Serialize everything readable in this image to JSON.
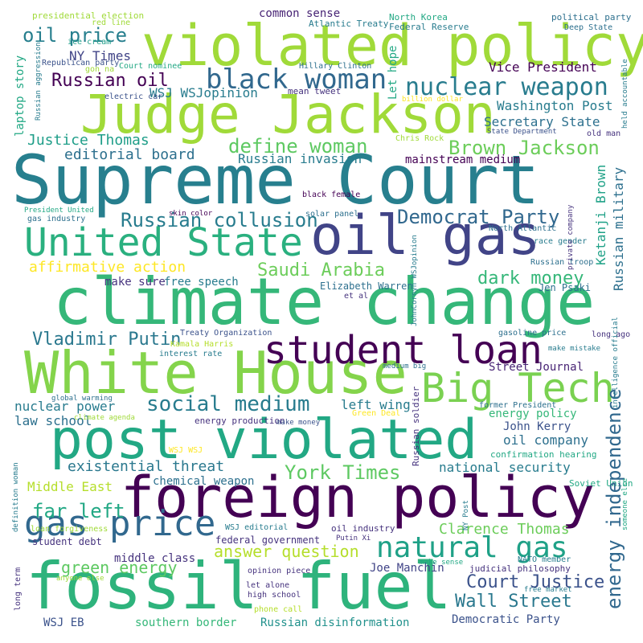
{
  "background": "#ffffff",
  "colors": {
    "dark_purple": "#440154",
    "indigo": "#46337e",
    "blue": "#365c8d",
    "teal": "#277f8e",
    "green_teal": "#1fa187",
    "green": "#4ac16d",
    "lime": "#a0da39",
    "yellow": "#fde725"
  },
  "words": {
    "supreme_court": "Supreme Court",
    "climate_change": "climate change",
    "judge_jackson": "Judge Jackson",
    "violated_policy": "violated policy",
    "white_house": "White House",
    "foreign_policy": "foreign policy",
    "fossil_fuel": "fossil fuel",
    "post_violated": "post violated",
    "oil_gas": "oil gas",
    "united_state": "United State",
    "student_loan": "student loan",
    "big_tech": "Big Tech",
    "gas_price": "gas price",
    "black_woman": "black woman",
    "natural_gas": "natural gas",
    "nuclear_weapon": "nuclear weapon",
    "social_medium": "social medium",
    "energy_independence": "energy independence",
    "define_woman": "define woman",
    "brown_jackson": "Brown Jackson",
    "russian_collusion": "Russian collusion",
    "democrat_party": "Democrat Party",
    "oil_price": "oil price",
    "russian_oil": "Russian oil",
    "vladimir_putin": "Vladimir Putin",
    "york_times": "York Times",
    "wall_street": "Wall Street",
    "court_justice": "Court Justice",
    "dark_money": "dark money",
    "saudi_arabia": "Saudi Arabia",
    "existential_threat": "existential threat",
    "far_left": "far left",
    "affirmative_action": "affirmative action",
    "green_energy": "green energy",
    "answer_question": "answer question",
    "clarence_thomas": "Clarence Thomas",
    "nuclear_power": "nuclear power",
    "editorial_board": "editorial board",
    "justice_thomas": "Justice Thomas",
    "secretary_state": "Secretary State",
    "washington_post": "Washington Post",
    "vice_president": "Vice President",
    "ny_times": "NY Times",
    "wsj_wsjopinion": "WSJ WSJopinion",
    "russian_invasion": "Russian invasion",
    "mainstream_medium": "mainstream medium",
    "common_sense": "common sense",
    "laptop_story": "laptop story",
    "let_hope": "Let hope",
    "russian_military": "Russian military",
    "ketanji_brown": "Ketanji Brown",
    "middle_east": "Middle East",
    "oil_company": "oil company",
    "john_kerry": "John Kerry",
    "energy_policy": "energy policy",
    "national_security": "national security",
    "left_wing": "left wing",
    "street_journal": "Street Journal",
    "law_school": "law school",
    "chemical_weapon": "chemical weapon",
    "natural_gas_small": "",
    "southern_border": "southern border",
    "russian_disinformation": "Russian disinformation",
    "democratic_party": "Democratic Party",
    "joe_manchin": "Joe Manchin",
    "middle_class": "middle class",
    "federal_government": "federal government",
    "student_debt": "student debt",
    "make_sure": "make sure",
    "free_speech": "free speech",
    "wsj_eb": "WSJ EB",
    "elizabeth_warren": "Elizabeth Warren",
    "jen_psaki": "Jen Psaki",
    "russian_troop": "Russian troop",
    "oil_industry": "oil industry",
    "presidential_election": "presidential election",
    "red_line": "red line",
    "ice_cream": "ice cream",
    "republican_party": "Republican party",
    "gon_na": "gon na",
    "russian_aggression": "Russian aggression",
    "court_nominee": "Court nominee",
    "electric_car": "electric car",
    "mean_tweet": "mean tweet",
    "hillary_clinton": "Hillary Clinton",
    "atlantic_treaty": "Atlantic Treaty",
    "north_korea": "North Korea",
    "federal_reserve": "Federal Reserve",
    "political_party": "political party",
    "deep_state": "Deep State",
    "held_accountable": "held accountable",
    "billion_dollar": "billion dollar",
    "old_man": "old man",
    "state_department": "State Department",
    "chris_rock": "Chris Rock",
    "black_female": "black female",
    "solar_panel": "solar panel",
    "skin_color": "skin color",
    "president_united": "President United",
    "gas_industry": "gas industry",
    "north_atlantic": "North Atlantic",
    "private_company": "private company",
    "race_gender": "race gender",
    "johncornyn": "JohnCornyn WSJopinion",
    "et_al": "et al",
    "treaty_organization": "Treaty Organization",
    "kamala_harris": "Kamala Harris",
    "interest_rate": "interest rate",
    "gasoline_price": "gasoline price",
    "long_ago": "long ago",
    "make_mistake": "make mistake",
    "intelligence_official": "intelligence official",
    "medium_big": "medium big",
    "global_warming": "global warming",
    "climate_agenda": "climate agenda",
    "energy_production": "energy production",
    "make_money": "make money",
    "green_deal": "Green Deal",
    "former_president": "former President",
    "russian_soldier": "Russian soldier",
    "confirmation_hearing": "confirmation hearing",
    "soviet_union": "Soviet Union",
    "someone_else": "someone else",
    "wsj_wsj": "WSJ WSJ",
    "definition_woman": "definition woman",
    "loan_forgiveness": "loan forgiveness",
    "ny_post": "NY Post",
    "putin_xi": "Putin Xi",
    "wsj_editorial": "WSJ editorial",
    "nato_member": "NATO member",
    "anyone_else": "anyone else",
    "opinion_piece": "opinion piece",
    "make_sense": "make sense",
    "judicial_philosophy": "judicial philosophy",
    "long_term": "long term",
    "let_alone": "let alone",
    "high_school": "high school",
    "free_market": "free market",
    "phone_call": "phone call"
  }
}
